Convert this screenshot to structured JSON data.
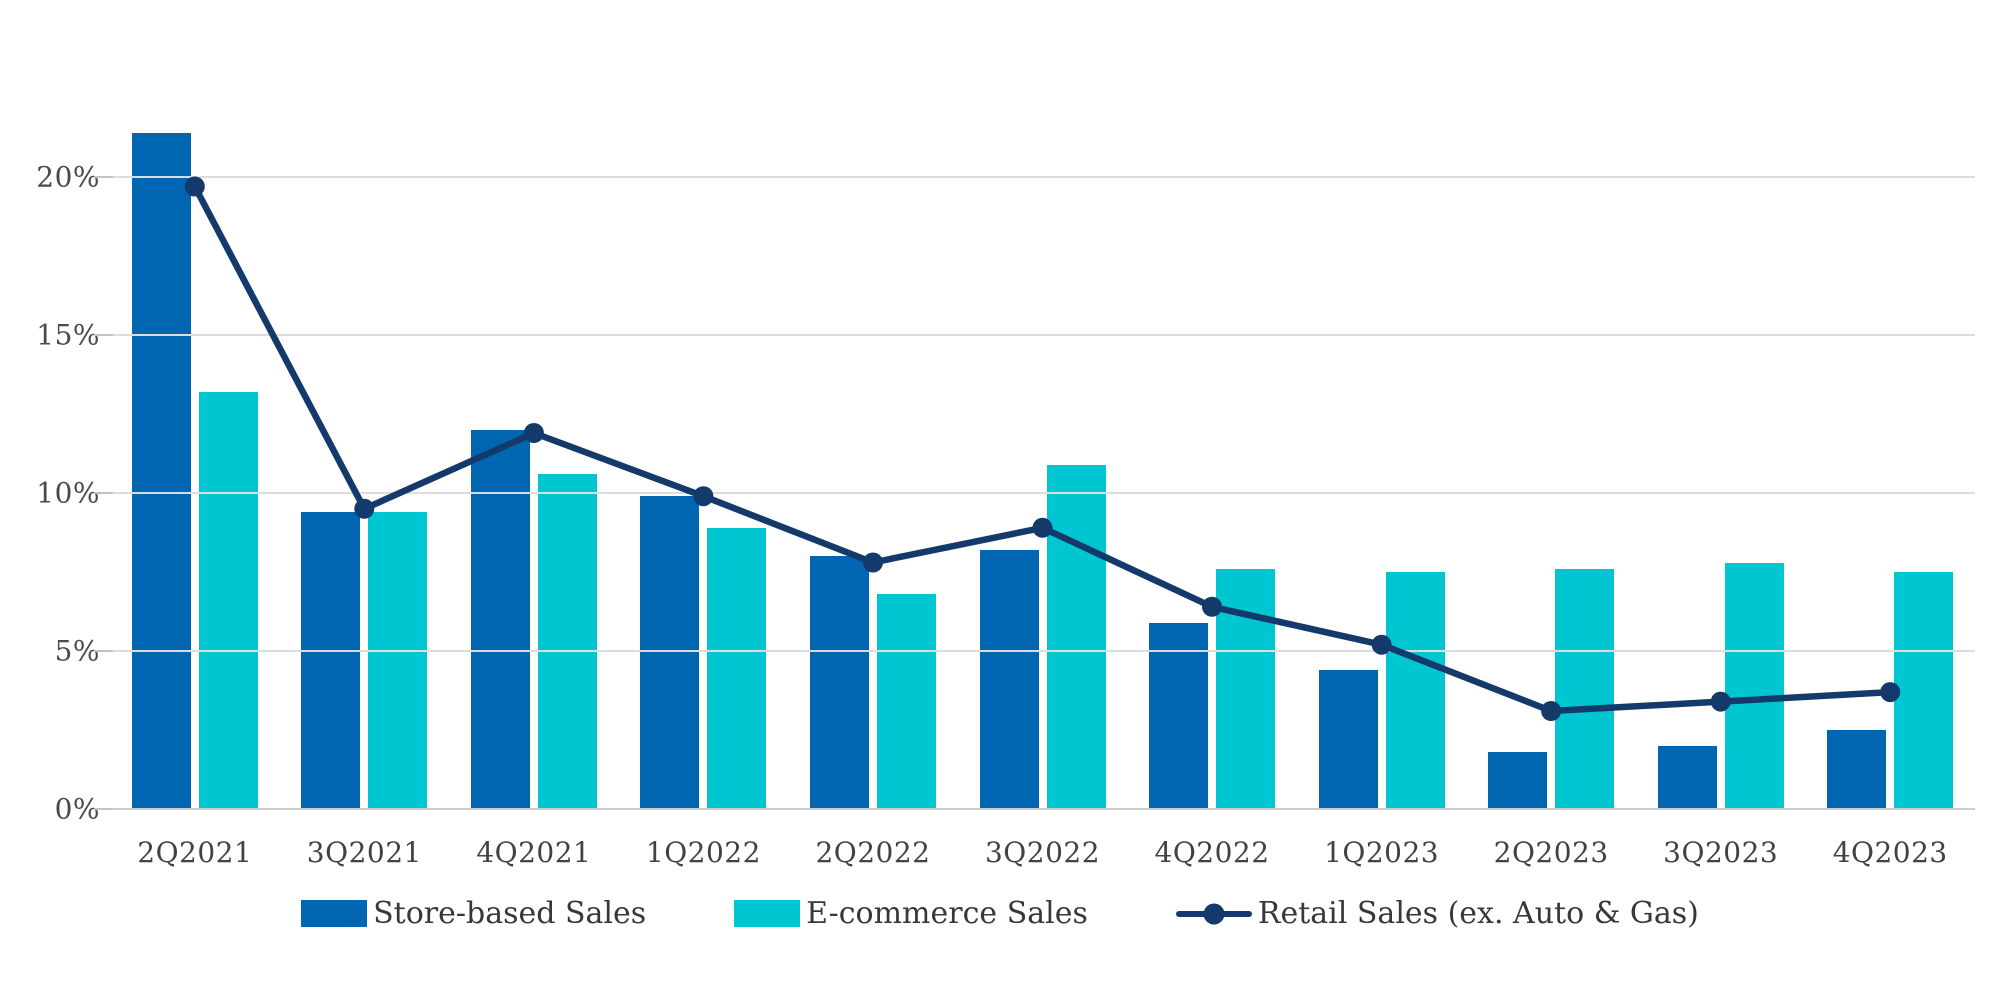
{
  "chart_data": {
    "type": "bar",
    "subtype": "grouped-bars-with-line-overlay",
    "categories": [
      "2Q2021",
      "3Q2021",
      "4Q2021",
      "1Q2022",
      "2Q2022",
      "3Q2022",
      "4Q2022",
      "1Q2023",
      "2Q2023",
      "3Q2023",
      "4Q2023"
    ],
    "series": [
      {
        "name": "Store-based Sales",
        "type": "bar",
        "color": "#0066b2",
        "values": [
          21.4,
          9.4,
          12.0,
          9.9,
          8.0,
          8.2,
          5.9,
          4.4,
          1.8,
          2.0,
          2.5
        ]
      },
      {
        "name": "E-commerce Sales",
        "type": "bar",
        "color": "#00c6d2",
        "values": [
          13.2,
          9.4,
          10.6,
          8.9,
          6.8,
          10.9,
          7.6,
          7.5,
          7.6,
          7.8,
          7.5
        ]
      },
      {
        "name": "Retail Sales (ex. Auto & Gas)",
        "type": "line",
        "color": "#143a6b",
        "values": [
          19.7,
          9.5,
          11.9,
          9.9,
          7.8,
          8.9,
          6.4,
          5.2,
          3.1,
          3.4,
          3.7
        ]
      }
    ],
    "title": "",
    "xlabel": "",
    "ylabel": "",
    "yticks": [
      0,
      5,
      10,
      15,
      20
    ],
    "ytick_suffix": "%",
    "ylim": [
      0,
      22
    ],
    "grid": "horizontal",
    "legend_position": "bottom"
  },
  "colors": {
    "background": "#ffffff",
    "gridline": "#dcdcdc",
    "axis_line": "#cfcfcf",
    "tick": "#c2c2c2",
    "axis_text": "#4a4a4a",
    "legend_text": "#383838"
  }
}
